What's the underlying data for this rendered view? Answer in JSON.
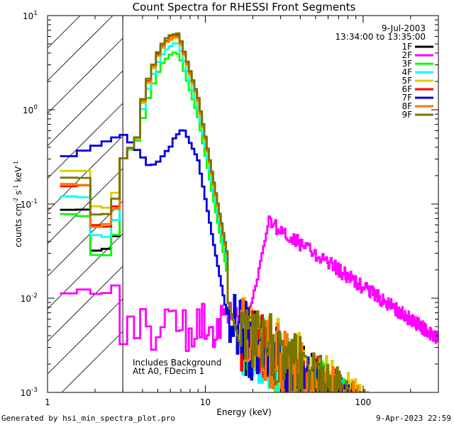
{
  "chart_data": {
    "type": "line",
    "title": "Count Spectra for RHESSI Front Segments",
    "xlabel": "Energy (keV)",
    "ylabel_base": "counts cm",
    "ylabel_sup1": "-2",
    "ylabel_mid": " s",
    "ylabel_sup2": "-1",
    "ylabel_end": " keV",
    "ylabel_sup3": "-1",
    "xscale": "log",
    "yscale": "log",
    "xlim": [
      1,
      300
    ],
    "ylim": [
      0.001,
      10
    ],
    "x_ticks": [
      {
        "value": 1,
        "label": "1"
      },
      {
        "value": 10,
        "label": "10"
      },
      {
        "value": 100,
        "label": "100"
      }
    ],
    "y_ticks": [
      {
        "value": 10,
        "base": "10",
        "exp": "1"
      },
      {
        "value": 1,
        "base": "10",
        "exp": "0"
      },
      {
        "value": 0.1,
        "base": "10",
        "exp": "-1"
      },
      {
        "value": 0.01,
        "base": "10",
        "exp": "-2"
      },
      {
        "value": 0.001,
        "base": "10",
        "exp": "-3"
      }
    ],
    "hatched_region": [
      1,
      3
    ],
    "date": "9-Jul-2003",
    "time_range": "13:34:00 to 13:35:00",
    "annotation": [
      "Includes Background",
      "Att A0, FDecim 1"
    ],
    "legend_position": "top-right",
    "series": [
      {
        "name": "1F",
        "color": "#000000",
        "peak": 6.0,
        "low": 0.032,
        "noise": 1.0
      },
      {
        "name": "2F",
        "color": "#ff00ff",
        "special": "2F"
      },
      {
        "name": "3F",
        "color": "#00ff00",
        "peak": 4.0,
        "low": 0.03,
        "noise": 1.0
      },
      {
        "name": "4F",
        "color": "#00ffff",
        "peak": 5.0,
        "low": 0.045,
        "noise": 0.95
      },
      {
        "name": "5F",
        "color": "#ddcc00",
        "peak": 5.8,
        "low": 0.09,
        "noise": 1.3
      },
      {
        "name": "6F",
        "color": "#ff0000",
        "peak": 6.2,
        "low": 0.06,
        "noise": 1.05
      },
      {
        "name": "7F",
        "color": "#0000dd",
        "special": "7F"
      },
      {
        "name": "8F",
        "color": "#ff7700",
        "peak": 6.0,
        "low": 0.06,
        "noise": 1.1
      },
      {
        "name": "9F",
        "color": "#777700",
        "peak": 6.4,
        "low": 0.075,
        "noise": 1.2
      }
    ]
  },
  "footer": {
    "generated": "Generated by hsi_min_spectra_plot.pro",
    "timestamp": "9-Apr-2023 22:59"
  }
}
